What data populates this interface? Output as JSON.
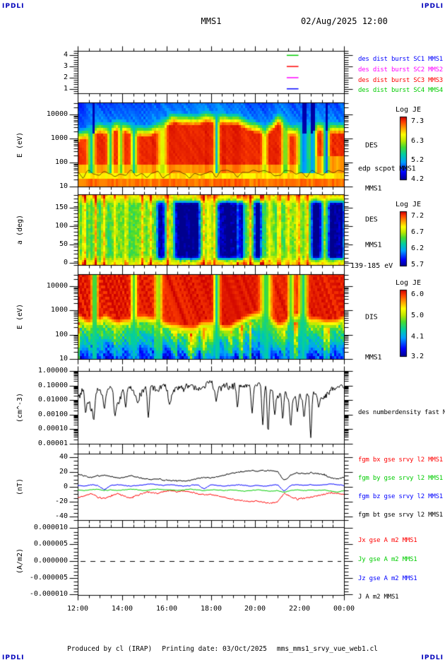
{
  "page": {
    "logo_text": "IPDLI",
    "title": "MMS1",
    "datetime": "02/Aug/2025 12:00",
    "footer_produced": "Produced by cl (IRAP)",
    "footer_printing": "Printing date: 03/Oct/2025",
    "footer_file": "mms_mms1_srvy_vue_web1.cl",
    "colors": {
      "logo": "#0000bb",
      "frame": "#000000",
      "background": "#ffffff"
    }
  },
  "time_axis": {
    "tick_labels": [
      "12:00",
      "14:00",
      "16:00",
      "18:00",
      "20:00",
      "22:00",
      "00:00"
    ],
    "minor_ticks_per_hour": 2,
    "span_hours": 12
  },
  "chart_data": [
    {
      "id": "burst_availability",
      "type": "scatter",
      "ylabel": "",
      "yscale": "linear",
      "ylim": [
        0.6,
        4.4
      ],
      "ytick_values": [
        1,
        2,
        3,
        4
      ],
      "ytick_labels": [
        "1",
        "2",
        "3",
        "4"
      ],
      "legend": [
        {
          "label": "des dist burst SC1 MMS1",
          "color": "#0000ff"
        },
        {
          "label": "des dist burst SC2 MMS2",
          "color": "#ff00ff"
        },
        {
          "label": "des dist burst SC3 MMS3",
          "color": "#ff0000"
        },
        {
          "label": "des dist burst SC4 MMS4",
          "color": "#00cc00"
        }
      ],
      "segments": [
        {
          "spacecraft": "MMS4",
          "y": 4,
          "color": "#00cc00",
          "t0": 0.785,
          "t1": 0.829
        },
        {
          "spacecraft": "MMS3",
          "y": 3,
          "color": "#ff0000",
          "t0": 0.785,
          "t1": 0.829
        },
        {
          "spacecraft": "MMS2",
          "y": 2,
          "color": "#ff00ff",
          "t0": 0.785,
          "t1": 0.829
        },
        {
          "spacecraft": "MMS1",
          "y": 1,
          "color": "#0000ff",
          "t0": 0.785,
          "t1": 0.829
        }
      ]
    },
    {
      "id": "des_energy_spectrogram",
      "type": "heatmap",
      "ylabel": "E (eV)",
      "yscale": "log",
      "ylim": [
        10,
        31623
      ],
      "ytick_values": [
        10,
        100,
        1000,
        10000
      ],
      "ytick_labels": [
        "10",
        "100",
        "1000",
        "10000"
      ],
      "colorbar": {
        "title": "Log JE",
        "vmin": 4.2,
        "vmax": 7.3,
        "tick_labels": [
          "7.3",
          "6.3",
          "5.2",
          "4.2"
        ]
      },
      "right_labels": [
        {
          "text": "DES",
          "color": "#000000"
        },
        {
          "text": "edp scpot MMS1",
          "color": "#000000"
        },
        {
          "text": "MMS1",
          "color": "#000000"
        }
      ],
      "structure": {
        "hot_value": 7.16,
        "low_band_value": 6.9,
        "mid_band_value": 6.5,
        "top_value": 5.0,
        "envelope": [
          0.22,
          0.4,
          0.3,
          0.55,
          0.4,
          0.3,
          0.5,
          0.75,
          0.82,
          0.8,
          0.78,
          0.82,
          0.78,
          0.55,
          0.35,
          0.72,
          0.4,
          0.3,
          0.55,
          0.5,
          0.45
        ],
        "gaps": [
          [
            0.047,
            0.012,
            1.3
          ],
          [
            0.118,
            0.009,
            1.1
          ],
          [
            0.158,
            0.008,
            0.9
          ],
          [
            0.208,
            0.01,
            1.2
          ],
          [
            0.315,
            0.014,
            0.7
          ],
          [
            0.52,
            0.008,
            1.4
          ],
          [
            0.7,
            0.01,
            0.6
          ],
          [
            0.778,
            0.012,
            1.0
          ],
          [
            0.848,
            0.022,
            1.6
          ],
          [
            0.882,
            0.012,
            1.4
          ],
          [
            0.932,
            0.01,
            1.7
          ]
        ],
        "dark_columns": [
          0.055,
          0.848,
          0.882,
          0.932
        ]
      }
    },
    {
      "id": "des_pitch_angle_spectrogram",
      "type": "heatmap",
      "ylabel": "a (deg)",
      "yscale": "linear",
      "ylim": [
        -6,
        186
      ],
      "ytick_values": [
        0,
        50,
        100,
        150
      ],
      "ytick_labels": [
        "0",
        "50",
        "100",
        "150"
      ],
      "colorbar": {
        "title": "Log JE",
        "vmin": 5.7,
        "vmax": 7.2,
        "tick_labels": [
          "7.2",
          "6.7",
          "6.2",
          "5.7"
        ]
      },
      "right_labels": [
        {
          "text": "DES",
          "color": "#000000"
        },
        {
          "text": "MMS1",
          "color": "#000000"
        }
      ],
      "energy_range_label": "139-185 eV",
      "structure": {
        "base": 6.52,
        "edge_boost": 0.32,
        "red_columns": [
          0.022,
          0.062,
          0.27,
          0.468,
          0.648,
          0.69
        ],
        "yellow_columns": [
          0.095,
          0.135,
          0.175,
          0.24,
          0.335,
          0.49,
          0.51,
          0.6,
          0.625,
          0.72,
          0.755,
          0.79,
          0.828,
          0.862
        ],
        "blue_intervals": [
          [
            0.295,
            0.325
          ],
          [
            0.362,
            0.458
          ],
          [
            0.522,
            0.628
          ],
          [
            0.66,
            0.695
          ],
          [
            0.875,
            0.915
          ],
          [
            0.94,
            1.0
          ]
        ]
      }
    },
    {
      "id": "dis_energy_spectrogram",
      "type": "heatmap",
      "ylabel": "E (eV)",
      "yscale": "log",
      "ylim": [
        10,
        31623
      ],
      "ytick_values": [
        10,
        100,
        1000,
        10000
      ],
      "ytick_labels": [
        "10",
        "100",
        "1000",
        "10000"
      ],
      "colorbar": {
        "title": "Log JE",
        "vmin": 3.2,
        "vmax": 6.0,
        "tick_labels": [
          "6.0",
          "5.0",
          "4.1",
          "3.2"
        ]
      },
      "right_labels": [
        {
          "text": "DIS",
          "color": "#000000"
        },
        {
          "text": "MMS1",
          "color": "#000000"
        }
      ],
      "structure": {
        "hot_value": 5.9,
        "envelope": [
          0.5,
          0.6,
          0.45,
          0.7,
          0.5,
          0.45,
          0.6,
          0.8,
          0.85,
          0.8,
          0.75,
          0.8,
          0.7,
          0.5,
          0.4,
          0.7,
          0.45,
          0.4,
          0.6,
          0.55,
          0.5
        ],
        "gaps": [
          [
            0.06,
            0.01,
            1.2
          ],
          [
            0.208,
            0.01,
            1.0
          ],
          [
            0.3,
            0.012,
            0.9
          ],
          [
            0.52,
            0.01,
            1.3
          ],
          [
            0.705,
            0.018,
            1.1
          ],
          [
            0.8,
            0.01,
            1.0
          ],
          [
            0.845,
            0.014,
            1.2
          ]
        ]
      }
    },
    {
      "id": "electron_density",
      "type": "line",
      "ylabel": "(cm^-3)",
      "yscale": "log",
      "ylim": [
        1e-05,
        1.0
      ],
      "ytick_values": [
        1,
        0.1,
        0.01,
        0.001,
        0.0001,
        1e-05
      ],
      "ytick_labels": [
        "1.00000",
        "0.10000",
        "0.01000",
        "0.00100",
        "0.00010",
        "0.00001"
      ],
      "right_labels": [
        {
          "text": "des numberdensity fast M",
          "color": "#000000"
        }
      ],
      "series": [
        {
          "name": "des numberdensity fast",
          "color": "#000000",
          "log10_anchors": [
            -1.8,
            -1.3,
            -2.6,
            -1.2,
            -1.6,
            -1.1,
            -2.4,
            -1.2,
            -1.1,
            -1.9,
            -1.2,
            -1.1,
            -1.4,
            -1.0,
            -1.8,
            -1.1,
            -1.2,
            -0.9,
            -1.4,
            -1.1,
            -0.8,
            -1.2,
            -1.0,
            -1.1,
            -0.9,
            -1.0,
            -1.1,
            -0.9,
            -1.0,
            -1.2,
            -1.8,
            -1.2,
            -2.2,
            -1.4,
            -1.9,
            -1.3,
            -1.6,
            -1.9,
            -1.3,
            -1.1,
            -1.2
          ],
          "dip_events": [
            [
              0.03,
              -2.9
            ],
            [
              0.06,
              -3.4
            ],
            [
              0.1,
              -2.6
            ],
            [
              0.14,
              -3.1
            ],
            [
              0.18,
              -2.5
            ],
            [
              0.225,
              -2.2
            ],
            [
              0.265,
              -3.2
            ],
            [
              0.345,
              -2.3
            ],
            [
              0.52,
              -2.1
            ],
            [
              0.6,
              -2.5
            ],
            [
              0.655,
              -2.9
            ],
            [
              0.695,
              -3.7
            ],
            [
              0.715,
              -4.2
            ],
            [
              0.74,
              -3.0
            ],
            [
              0.77,
              -3.3
            ],
            [
              0.8,
              -3.8
            ],
            [
              0.825,
              -2.8
            ],
            [
              0.85,
              -3.2
            ],
            [
              0.875,
              -4.6
            ],
            [
              0.905,
              -2.5
            ]
          ]
        }
      ]
    },
    {
      "id": "fgm_magnetic_field",
      "type": "line",
      "ylabel": "(nT)",
      "yscale": "linear",
      "ylim": [
        -45,
        45
      ],
      "ytick_values": [
        40,
        20,
        0,
        -20,
        -40
      ],
      "ytick_labels": [
        "40",
        "20",
        "0",
        "-20",
        "-40"
      ],
      "right_labels": [
        {
          "text": "fgm bx gse srvy l2 MMS1",
          "color": "#ff0000"
        },
        {
          "text": "fgm by gse srvy l2 MMS1",
          "color": "#00cc00"
        },
        {
          "text": "fgm bz gse srvy l2 MMS1",
          "color": "#0000ff"
        },
        {
          "text": "fgm bt gse srvy l2 MMS1",
          "color": "#000000"
        }
      ],
      "series": [
        {
          "name": "bx",
          "color": "#ff0000",
          "jitter": 1.5,
          "anchors": [
            -15,
            -12,
            -9,
            -14,
            -16,
            -12,
            -9,
            -13,
            -15,
            -11,
            -8,
            -7,
            -9,
            -6,
            -5,
            -7,
            -6,
            -7,
            -9,
            -11,
            -10,
            -12,
            -14,
            -16,
            -18,
            -19,
            -20,
            -19,
            -21,
            -22,
            -20,
            -9,
            -13,
            -17,
            -15,
            -14,
            -12,
            -10,
            -8,
            -9,
            -10
          ]
        },
        {
          "name": "by",
          "color": "#00cc00",
          "jitter": 0.7,
          "anchors": [
            -4,
            -5,
            -4,
            -3,
            -5,
            -4,
            -5,
            -4,
            -3,
            -4,
            -5,
            -4,
            -3,
            -4,
            -4,
            -5,
            -4,
            -3,
            -4,
            -5,
            -4,
            -4,
            -5,
            -4,
            -5,
            -6,
            -5,
            -4,
            -5,
            -6,
            -5,
            -7,
            -5,
            -4,
            -5,
            -4,
            -5,
            -4,
            -6,
            -7,
            -5
          ]
        },
        {
          "name": "bz",
          "color": "#0000ff",
          "jitter": 0.8,
          "anchors": [
            2,
            1,
            3,
            2,
            -4,
            2,
            3,
            2,
            1,
            2,
            3,
            4,
            3,
            2,
            3,
            2,
            1,
            2,
            3,
            -3,
            3,
            2,
            1,
            2,
            3,
            2,
            1,
            2,
            1,
            2,
            3,
            -6,
            2,
            3,
            2,
            3,
            2,
            3,
            4,
            3,
            2
          ]
        },
        {
          "name": "bt",
          "color": "#000000",
          "jitter": 1.5,
          "anchors": [
            17,
            15,
            13,
            15,
            16,
            14,
            12,
            13,
            15,
            13,
            11,
            10,
            11,
            9,
            8,
            9,
            8,
            9,
            11,
            13,
            12,
            14,
            16,
            18,
            20,
            21,
            22,
            21,
            22,
            22,
            21,
            9,
            16,
            19,
            18,
            19,
            18,
            17,
            12,
            11,
            13
          ]
        }
      ]
    },
    {
      "id": "current_density",
      "type": "line",
      "ylabel": "(A/m2)",
      "yscale": "linear",
      "ylim": [
        -1.02e-05,
        1.02e-05
      ],
      "ytick_values": [
        1e-05,
        5e-06,
        0,
        -5e-06,
        -1e-05
      ],
      "ytick_labels": [
        "0.000010",
        "0.000005",
        "0.000000",
        "-0.000005",
        "-0.000010"
      ],
      "zero_line_dashed": true,
      "right_labels": [
        {
          "text": "Jx gse A m2 MMS1",
          "color": "#ff0000"
        },
        {
          "text": "Jy gse A m2 MMS1",
          "color": "#00cc00"
        },
        {
          "text": "Jz gse A m2 MMS1",
          "color": "#0000ff"
        },
        {
          "text": "J A m2 MMS1",
          "color": "#000000"
        }
      ],
      "series": []
    }
  ]
}
